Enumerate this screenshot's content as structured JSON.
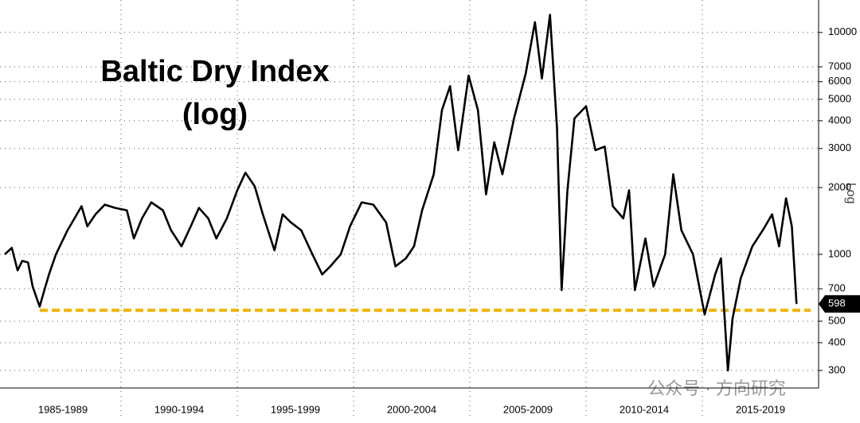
{
  "chart_data": {
    "type": "line",
    "title": "Baltic Dry Index",
    "subtitle": "(log)",
    "y_axis_label": "Log",
    "watermark": "公众号 · 方向研究",
    "log_scale": true,
    "grid": true,
    "color": "#000000",
    "reference_line": {
      "value": 560,
      "color": "#f0b400"
    },
    "xlim": [
      1985,
      2020
    ],
    "ylim": [
      250,
      14000
    ],
    "x_periods": [
      {
        "value": 1987.5,
        "label": "1985-1989"
      },
      {
        "value": 1992.5,
        "label": "1990-1994"
      },
      {
        "value": 1997.5,
        "label": "1995-1999"
      },
      {
        "value": 2002.5,
        "label": "2000-2004"
      },
      {
        "value": 2007.5,
        "label": "2005-2009"
      },
      {
        "value": 2012.5,
        "label": "2010-2014"
      },
      {
        "value": 2017.5,
        "label": "2015-2019"
      }
    ],
    "yticks": [
      300,
      400,
      500,
      700,
      1000,
      2000,
      3000,
      4000,
      5000,
      6000,
      7000,
      10000
    ],
    "x": [
      1985.0,
      1985.3,
      1985.55,
      1985.75,
      1986.0,
      1986.2,
      1986.5,
      1986.7,
      1986.9,
      1987.2,
      1987.45,
      1987.7,
      1988.0,
      1988.3,
      1988.55,
      1988.9,
      1989.3,
      1989.75,
      1990.25,
      1990.55,
      1990.9,
      1991.3,
      1991.8,
      1992.15,
      1992.6,
      1993.0,
      1993.35,
      1993.75,
      1994.1,
      1994.55,
      1995.0,
      1995.35,
      1995.75,
      1996.1,
      1996.6,
      1996.95,
      1997.3,
      1997.75,
      1998.15,
      1998.65,
      1999.0,
      1999.45,
      1999.85,
      2000.35,
      2000.85,
      2001.4,
      2001.8,
      2002.25,
      2002.6,
      2002.95,
      2003.45,
      2003.8,
      2004.15,
      2004.5,
      2004.95,
      2005.35,
      2005.7,
      2006.05,
      2006.4,
      2006.9,
      2007.4,
      2007.8,
      2008.1,
      2008.45,
      2008.75,
      2008.95,
      2009.2,
      2009.5,
      2010.0,
      2010.4,
      2010.8,
      2011.15,
      2011.6,
      2011.85,
      2012.1,
      2012.55,
      2012.9,
      2013.4,
      2013.75,
      2014.1,
      2014.6,
      2015.1,
      2015.55,
      2015.8,
      2016.1,
      2016.3,
      2016.65,
      2017.15,
      2017.6,
      2018.0,
      2018.3,
      2018.6,
      2018.85,
      2019.05
    ],
    "values": [
      1000,
      1070,
      847,
      935,
      920,
      717,
      582,
      688,
      812,
      1000,
      1133,
      1284,
      1454,
      1647,
      1338,
      1515,
      1675,
      1619,
      1580,
      1180,
      1454,
      1715,
      1580,
      1284,
      1087,
      1338,
      1619,
      1454,
      1180,
      1454,
      1944,
      2333,
      2027,
      1515,
      1042,
      1515,
      1394,
      1284,
      1042,
      812,
      883,
      1000,
      1338,
      1715,
      1675,
      1394,
      883,
      959,
      1087,
      1580,
      2296,
      4466,
      5730,
      2948,
      6390,
      4466,
      1864,
      3200,
      2296,
      4100,
      6500,
      11120,
      6200,
      12000,
      3700,
      690,
      1944,
      4100,
      4650,
      2948,
      3060,
      1647,
      1454,
      1944,
      690,
      1180,
      717,
      1000,
      2296,
      1284,
      1000,
      536,
      812,
      959,
      300,
      515,
      780,
      1087,
      1284,
      1515,
      1087,
      1790,
      1338,
      598
    ]
  }
}
